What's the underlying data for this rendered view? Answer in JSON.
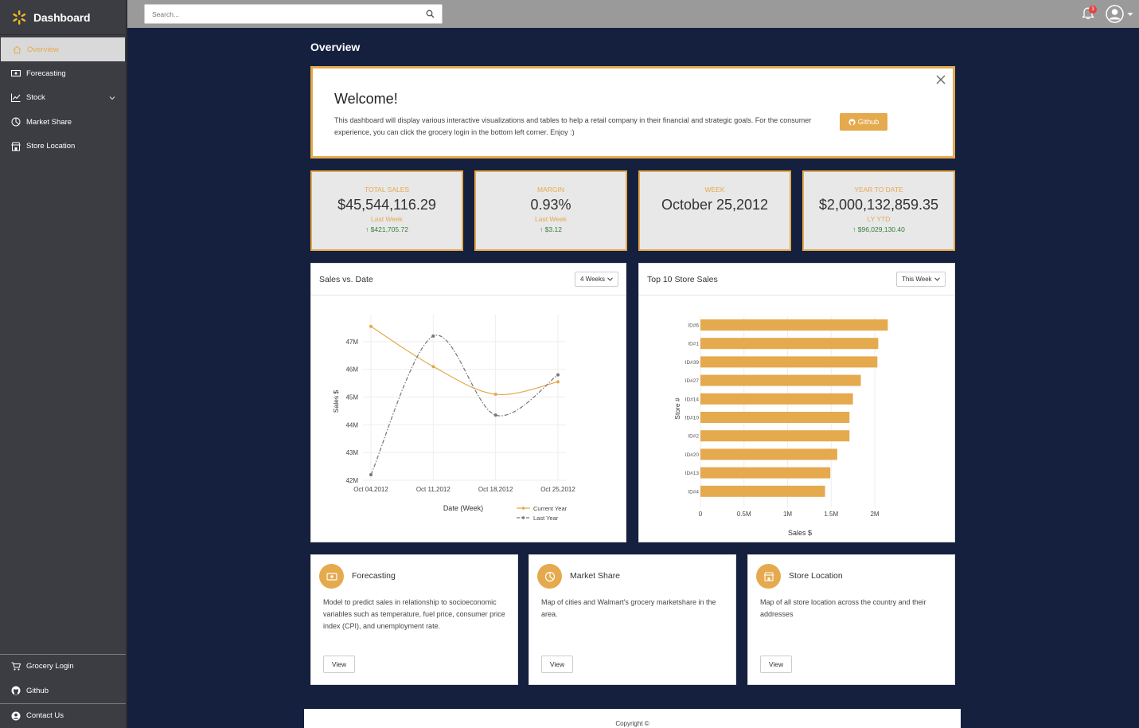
{
  "brand": {
    "title": "Dashboard",
    "accent": "#e5a94e"
  },
  "sidebar": {
    "items": [
      {
        "label": "Overview",
        "icon": "home-icon",
        "active": true
      },
      {
        "label": "Forecasting",
        "icon": "money-icon"
      },
      {
        "label": "Stock",
        "icon": "trend-icon"
      },
      {
        "label": "Market Share",
        "icon": "pie-icon"
      },
      {
        "label": "Store Location",
        "icon": "store-icon"
      }
    ],
    "bottom": [
      {
        "label": "Grocery Login",
        "icon": "cart-icon"
      },
      {
        "label": "Github",
        "icon": "github-icon"
      },
      {
        "label": "Contact Us",
        "icon": "user-icon"
      }
    ]
  },
  "topbar": {
    "search_placeholder": "Search...",
    "notifications": "3"
  },
  "page": {
    "title": "Overview"
  },
  "welcome": {
    "title": "Welcome!",
    "text": "This dashboard will display various interactive visualizations and tables to help a retail company in their financial and strategic goals. For the consumer experience, you can click the grocery login in the bottom left corner. Enjoy :)",
    "button": "Github"
  },
  "kpis": [
    {
      "label": "TOTAL SALES",
      "value": "$45,544,116.29",
      "sub": "Last Week",
      "change": "↑ $421,705.72"
    },
    {
      "label": "MARGIN",
      "value": "0.93%",
      "sub": "Last Week",
      "change": "↑ $3.12"
    },
    {
      "label": "WEEK",
      "value": "October 25,2012",
      "sub": "",
      "change": ""
    },
    {
      "label": "YEAR TO DATE",
      "value": "$2,000,132,859.35",
      "sub": "LY YTD",
      "change": "↑ $96,029,130.40"
    }
  ],
  "sales_card": {
    "title": "Sales vs. Date",
    "dropdown": "4 Weeks"
  },
  "store_card": {
    "title": "Top 10 Store Sales",
    "dropdown": "This Week"
  },
  "nav_cards": [
    {
      "title": "Forecasting",
      "icon": "money-icon",
      "desc": "Model to predict sales in relationship to socioeconomic variables such as temperature, fuel price, consumer price index (CPI), and unemployment rate.",
      "button": "View"
    },
    {
      "title": "Market Share",
      "icon": "pie-icon",
      "desc": "Map of cities and Walmart's grocery marketshare in the area.",
      "button": "View"
    },
    {
      "title": "Store Location",
      "icon": "store-icon",
      "desc": "Map of all store location across the country and their addresses",
      "button": "View"
    }
  ],
  "footer": {
    "copyright": "Copyright ©"
  },
  "chart_data": [
    {
      "type": "line",
      "x": [
        "Oct 04,2012",
        "Oct 11,2012",
        "Oct 18,2012",
        "Oct 25,2012"
      ],
      "xlabel": "Date (Week)",
      "ylabel": "Sales $",
      "yticks": [
        "42M",
        "43M",
        "44M",
        "45M",
        "46M",
        "47M"
      ],
      "ylim": [
        42,
        47.8
      ],
      "series": [
        {
          "name": "Current Year",
          "values": [
            47.55,
            46.1,
            45.1,
            45.55
          ],
          "color": "#e5a94e"
        },
        {
          "name": "Last Year",
          "values": [
            42.2,
            47.2,
            44.35,
            45.8
          ],
          "color": "#777777"
        }
      ],
      "legend": "bottom-right",
      "grid": true
    },
    {
      "type": "bar",
      "orientation": "horizontal",
      "categories": [
        "ID#6",
        "ID#1",
        "ID#39",
        "ID#27",
        "ID#14",
        "ID#10",
        "ID#2",
        "ID#20",
        "ID#13",
        "ID#4"
      ],
      "values": [
        2.15,
        2.04,
        2.03,
        1.84,
        1.75,
        1.71,
        1.71,
        1.57,
        1.49,
        1.43
      ],
      "xlabel": "Sales $",
      "ylabel": "Store #",
      "xticks": [
        "0",
        "0.5M",
        "1M",
        "1.5M",
        "2M"
      ],
      "xlim": [
        0,
        2.3
      ],
      "color": "#e5a94e",
      "grid": true
    }
  ]
}
